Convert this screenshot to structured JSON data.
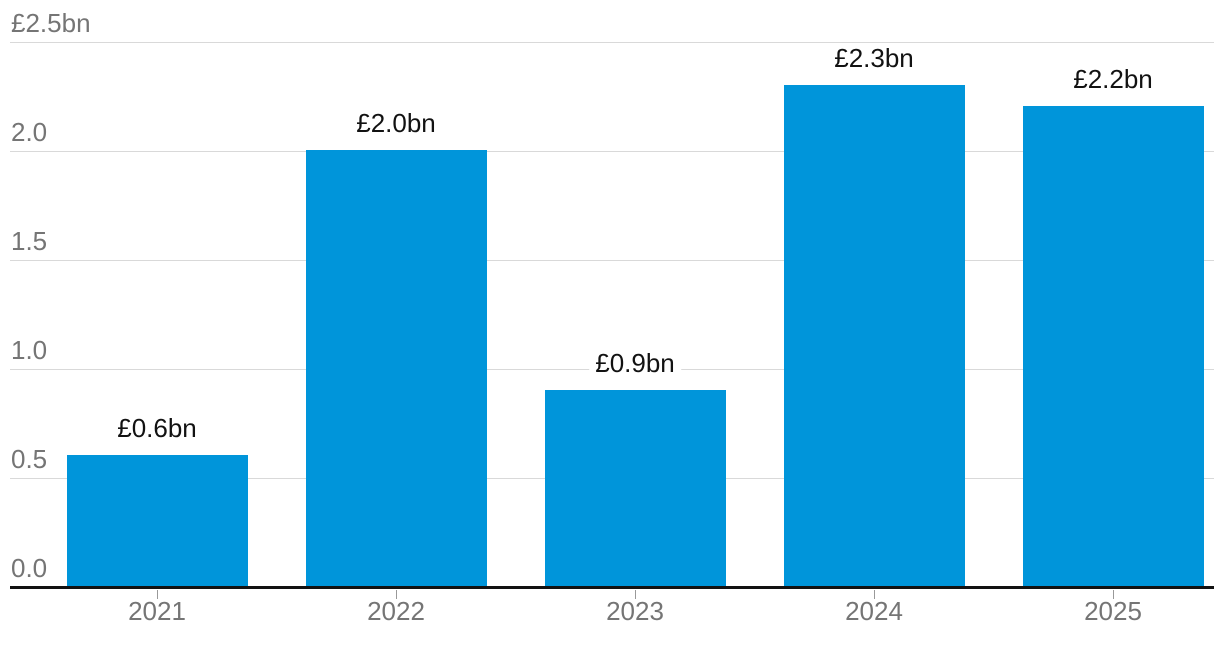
{
  "chart_data": {
    "type": "bar",
    "categories": [
      "2021",
      "2022",
      "2023",
      "2024",
      "2025"
    ],
    "values": [
      0.6,
      2.0,
      0.9,
      2.3,
      2.2
    ],
    "bar_labels": [
      "£0.6bn",
      "£2.0bn",
      "£0.9bn",
      "£2.3bn",
      "£2.2bn"
    ],
    "ylim": [
      0,
      2.5
    ],
    "yticks": [
      0.0,
      0.5,
      1.0,
      1.5,
      2.0,
      2.5
    ],
    "ytick_labels": [
      "0.0",
      "0.5",
      "1.0",
      "1.5",
      "2.0",
      "£2.5bn"
    ],
    "grid": true,
    "legend": false,
    "colors": {
      "bar": "#0095da",
      "gridline": "#d9d9d9",
      "axis_line": "#121212",
      "axis_text": "#757575",
      "value_label_text": "#121212",
      "tick_mark": "#999999",
      "background": "#ffffff"
    }
  }
}
